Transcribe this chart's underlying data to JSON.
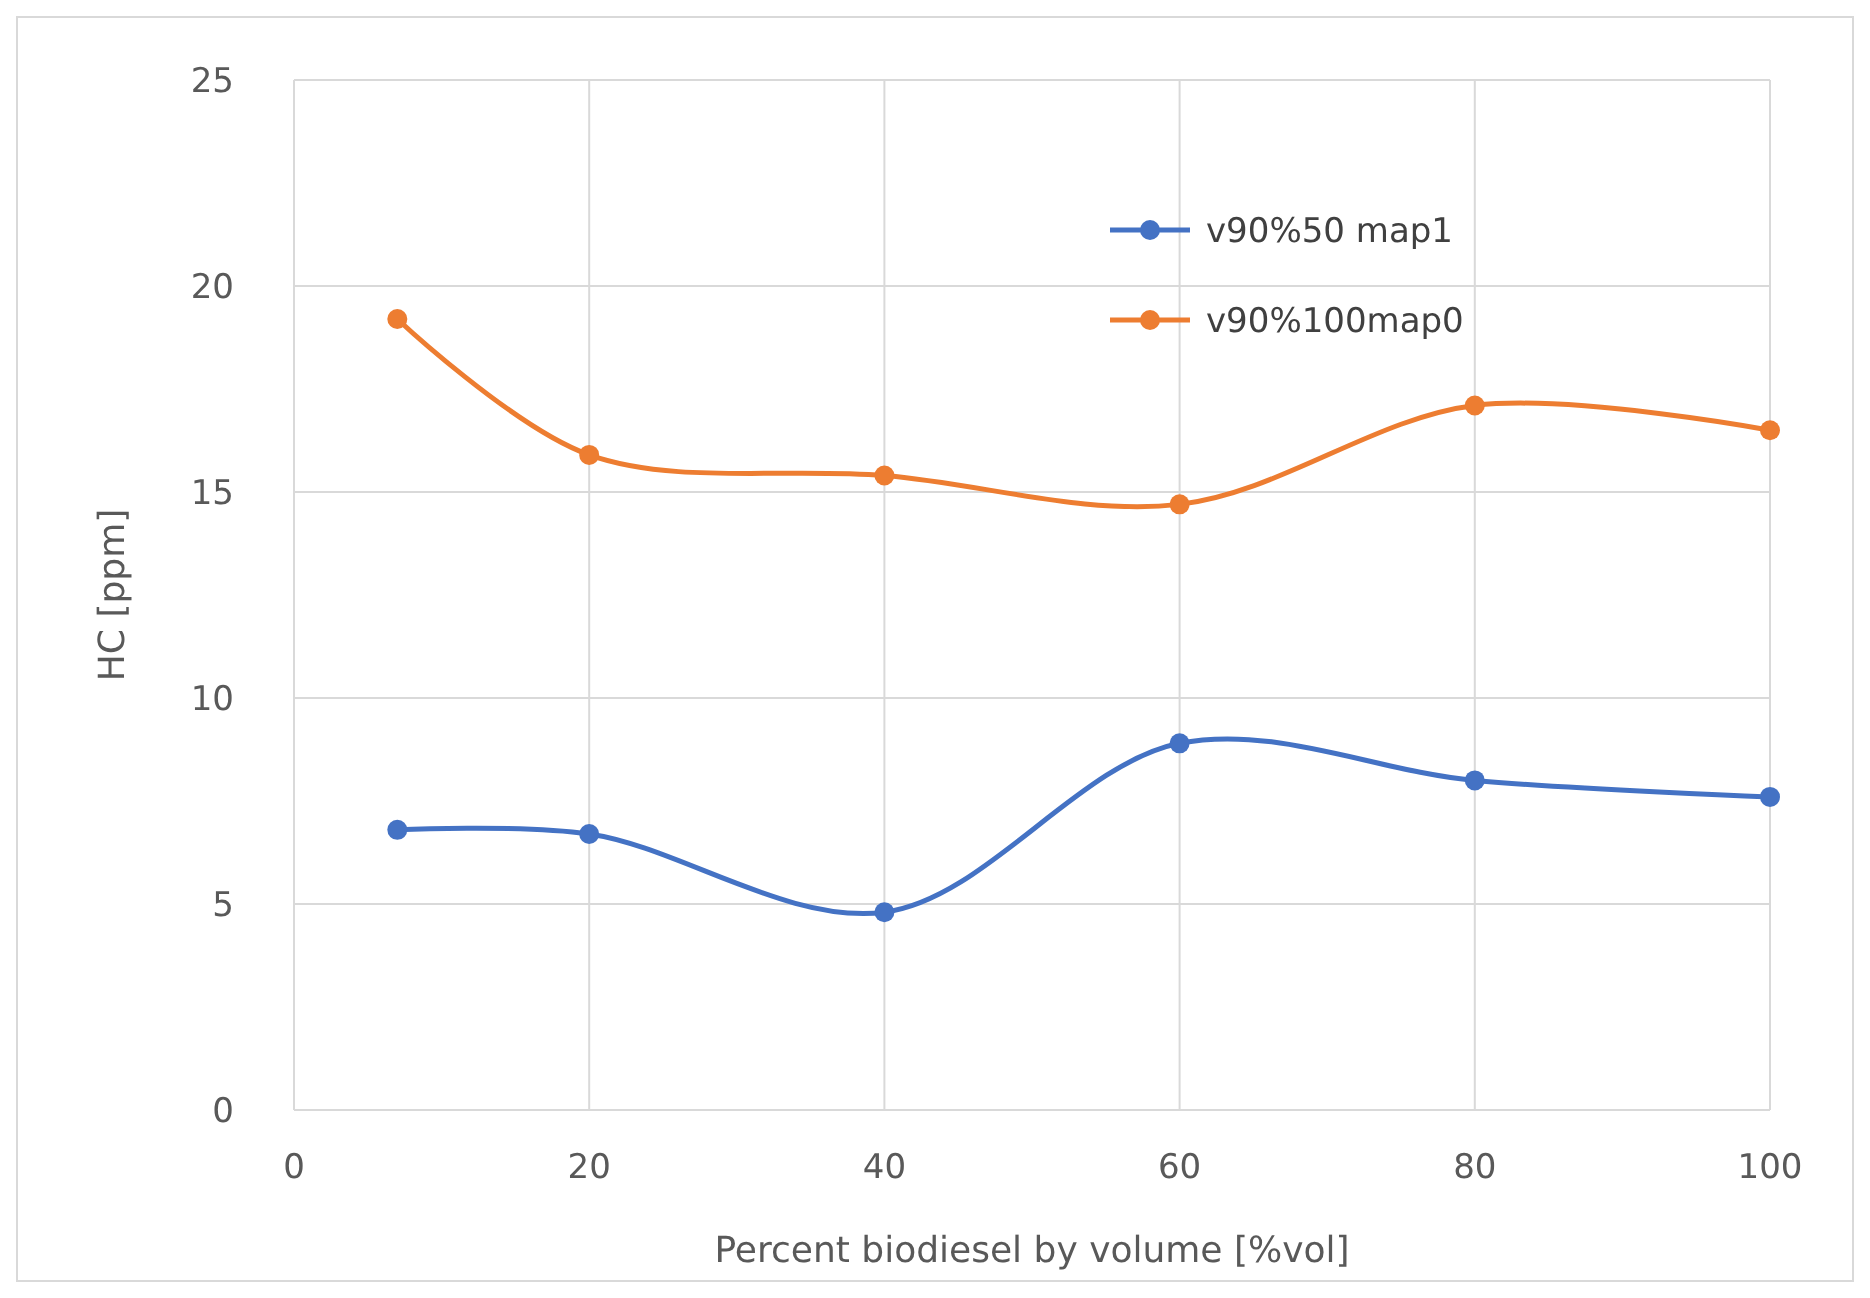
{
  "chart_data": {
    "type": "line",
    "xlabel": "Percent biodiesel by volume [%vol]",
    "ylabel": "HC [ppm]",
    "x": [
      7,
      20,
      40,
      60,
      80,
      100
    ],
    "series": [
      {
        "name": "v90%50 map1",
        "color": "#4472c4",
        "values": [
          6.8,
          6.7,
          4.8,
          8.9,
          8.0,
          7.6
        ]
      },
      {
        "name": "v90%100map0",
        "color": "#ed7d31",
        "values": [
          19.2,
          15.9,
          15.4,
          14.7,
          17.1,
          16.5
        ]
      }
    ],
    "xlim": [
      0,
      100
    ],
    "xticks": [
      0,
      20,
      40,
      60,
      80,
      100
    ],
    "ylim": [
      0,
      25
    ],
    "yticks": [
      0,
      5,
      10,
      15,
      20,
      25
    ],
    "grid": true,
    "legend": "top right",
    "marker": "circle",
    "line_style": "solid"
  }
}
